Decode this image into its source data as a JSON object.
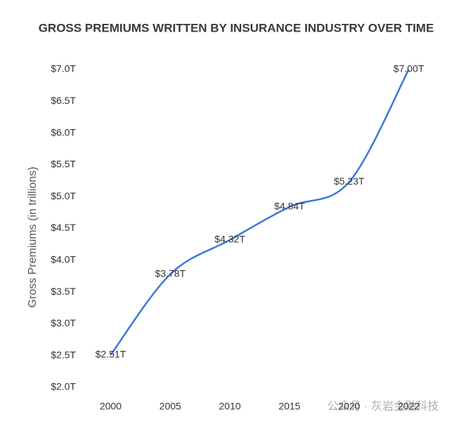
{
  "chart_data": {
    "type": "line",
    "title": "GROSS PREMIUMS WRITTEN BY INSURANCE INDUSTRY OVER TIME",
    "y_label": "Gross Premiums (in trillions)",
    "categories": [
      "2000",
      "2005",
      "2010",
      "2015",
      "2020",
      "2022"
    ],
    "values": [
      2.51,
      3.78,
      4.32,
      4.84,
      5.23,
      7.0
    ],
    "value_labels": [
      "$2.51T",
      "$3.78T",
      "$4.32T",
      "$4.84T",
      "$5.23T",
      "$7.00T"
    ],
    "color": "#3c78d8",
    "ylim": [
      2.0,
      7.0
    ],
    "yticks": [
      {
        "value": 2.0,
        "label": "$2.0T"
      },
      {
        "value": 2.5,
        "label": "$2.5T"
      },
      {
        "value": 3.0,
        "label": "$3.0T"
      },
      {
        "value": 3.5,
        "label": "$3.5T"
      },
      {
        "value": 4.0,
        "label": "$4.0T"
      },
      {
        "value": 4.5,
        "label": "$4.5T"
      },
      {
        "value": 5.0,
        "label": "$5.0T"
      },
      {
        "value": 5.5,
        "label": "$5.5T"
      },
      {
        "value": 6.0,
        "label": "$6.0T"
      },
      {
        "value": 6.5,
        "label": "$6.5T"
      },
      {
        "value": 7.0,
        "label": "$7.0T"
      }
    ],
    "grid": false,
    "watermark": "公众号 · 灰岩金融科技"
  }
}
